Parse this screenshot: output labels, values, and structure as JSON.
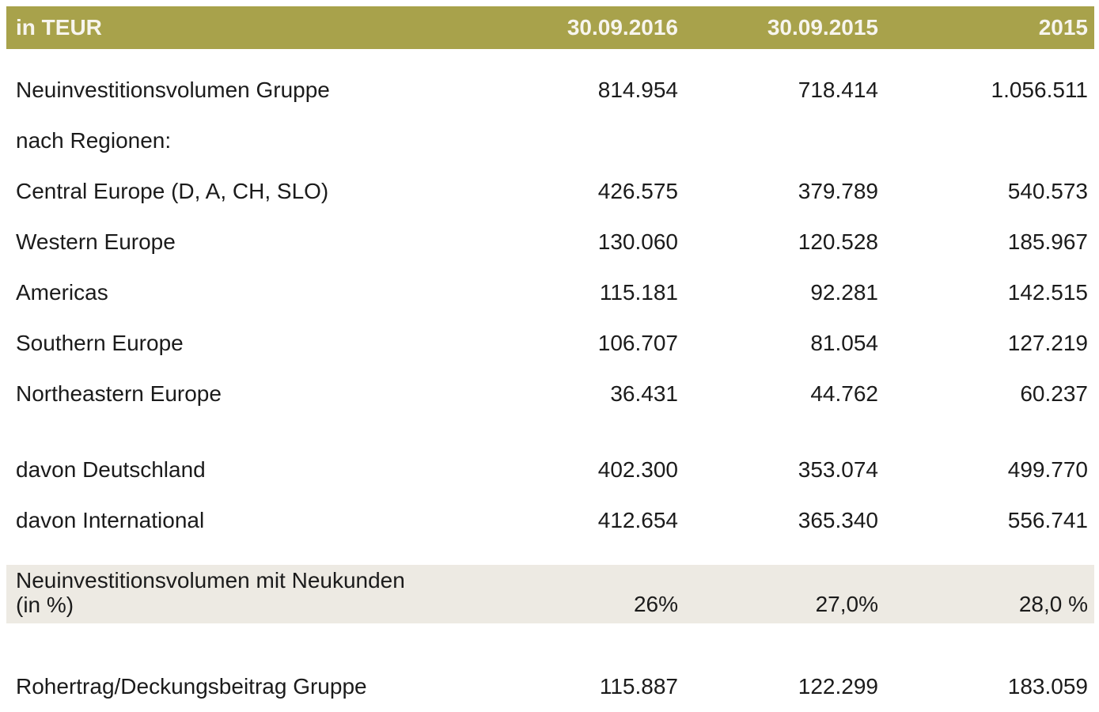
{
  "table": {
    "unit_label": "in TEUR",
    "columns": [
      "30.09.2016",
      "30.09.2015",
      "2015"
    ],
    "colors": {
      "header_bg": "#a8a24b",
      "header_text": "#f7f5ee",
      "highlight_bg": "#edeae3",
      "body_text": "#1b1b1b"
    },
    "rows": [
      {
        "label": "Neuinvestitionsvolumen Gruppe",
        "values": [
          "814.954",
          "718.414",
          "1.056.511"
        ]
      },
      {
        "label": "nach Regionen:",
        "values": [
          "",
          "",
          ""
        ]
      },
      {
        "label": "Central Europe (D, A, CH, SLO)",
        "values": [
          "426.575",
          "379.789",
          "540.573"
        ]
      },
      {
        "label": "Western Europe",
        "values": [
          "130.060",
          "120.528",
          "185.967"
        ]
      },
      {
        "label": "Americas",
        "values": [
          "115.181",
          "92.281",
          "142.515"
        ]
      },
      {
        "label": "Southern Europe",
        "values": [
          "106.707",
          "81.054",
          "127.219"
        ]
      },
      {
        "label": "Northeastern Europe",
        "values": [
          "36.431",
          "44.762",
          "60.237"
        ]
      },
      {
        "label": "davon Deutschland",
        "values": [
          "402.300",
          "353.074",
          "499.770"
        ]
      },
      {
        "label": "davon International",
        "values": [
          "412.654",
          "365.340",
          "556.741"
        ]
      },
      {
        "label": "Neuinvestitionsvolumen mit Neukunden (in %)",
        "label_line1": "Neuinvestitionsvolumen mit Neukunden",
        "label_line2": "(in %)",
        "values": [
          "26%",
          "27,0%",
          "28,0 %"
        ],
        "highlight": true
      },
      {
        "label": "Rohertrag/Deckungsbeitrag Gruppe",
        "values": [
          "115.887",
          "122.299",
          "183.059"
        ]
      }
    ]
  }
}
